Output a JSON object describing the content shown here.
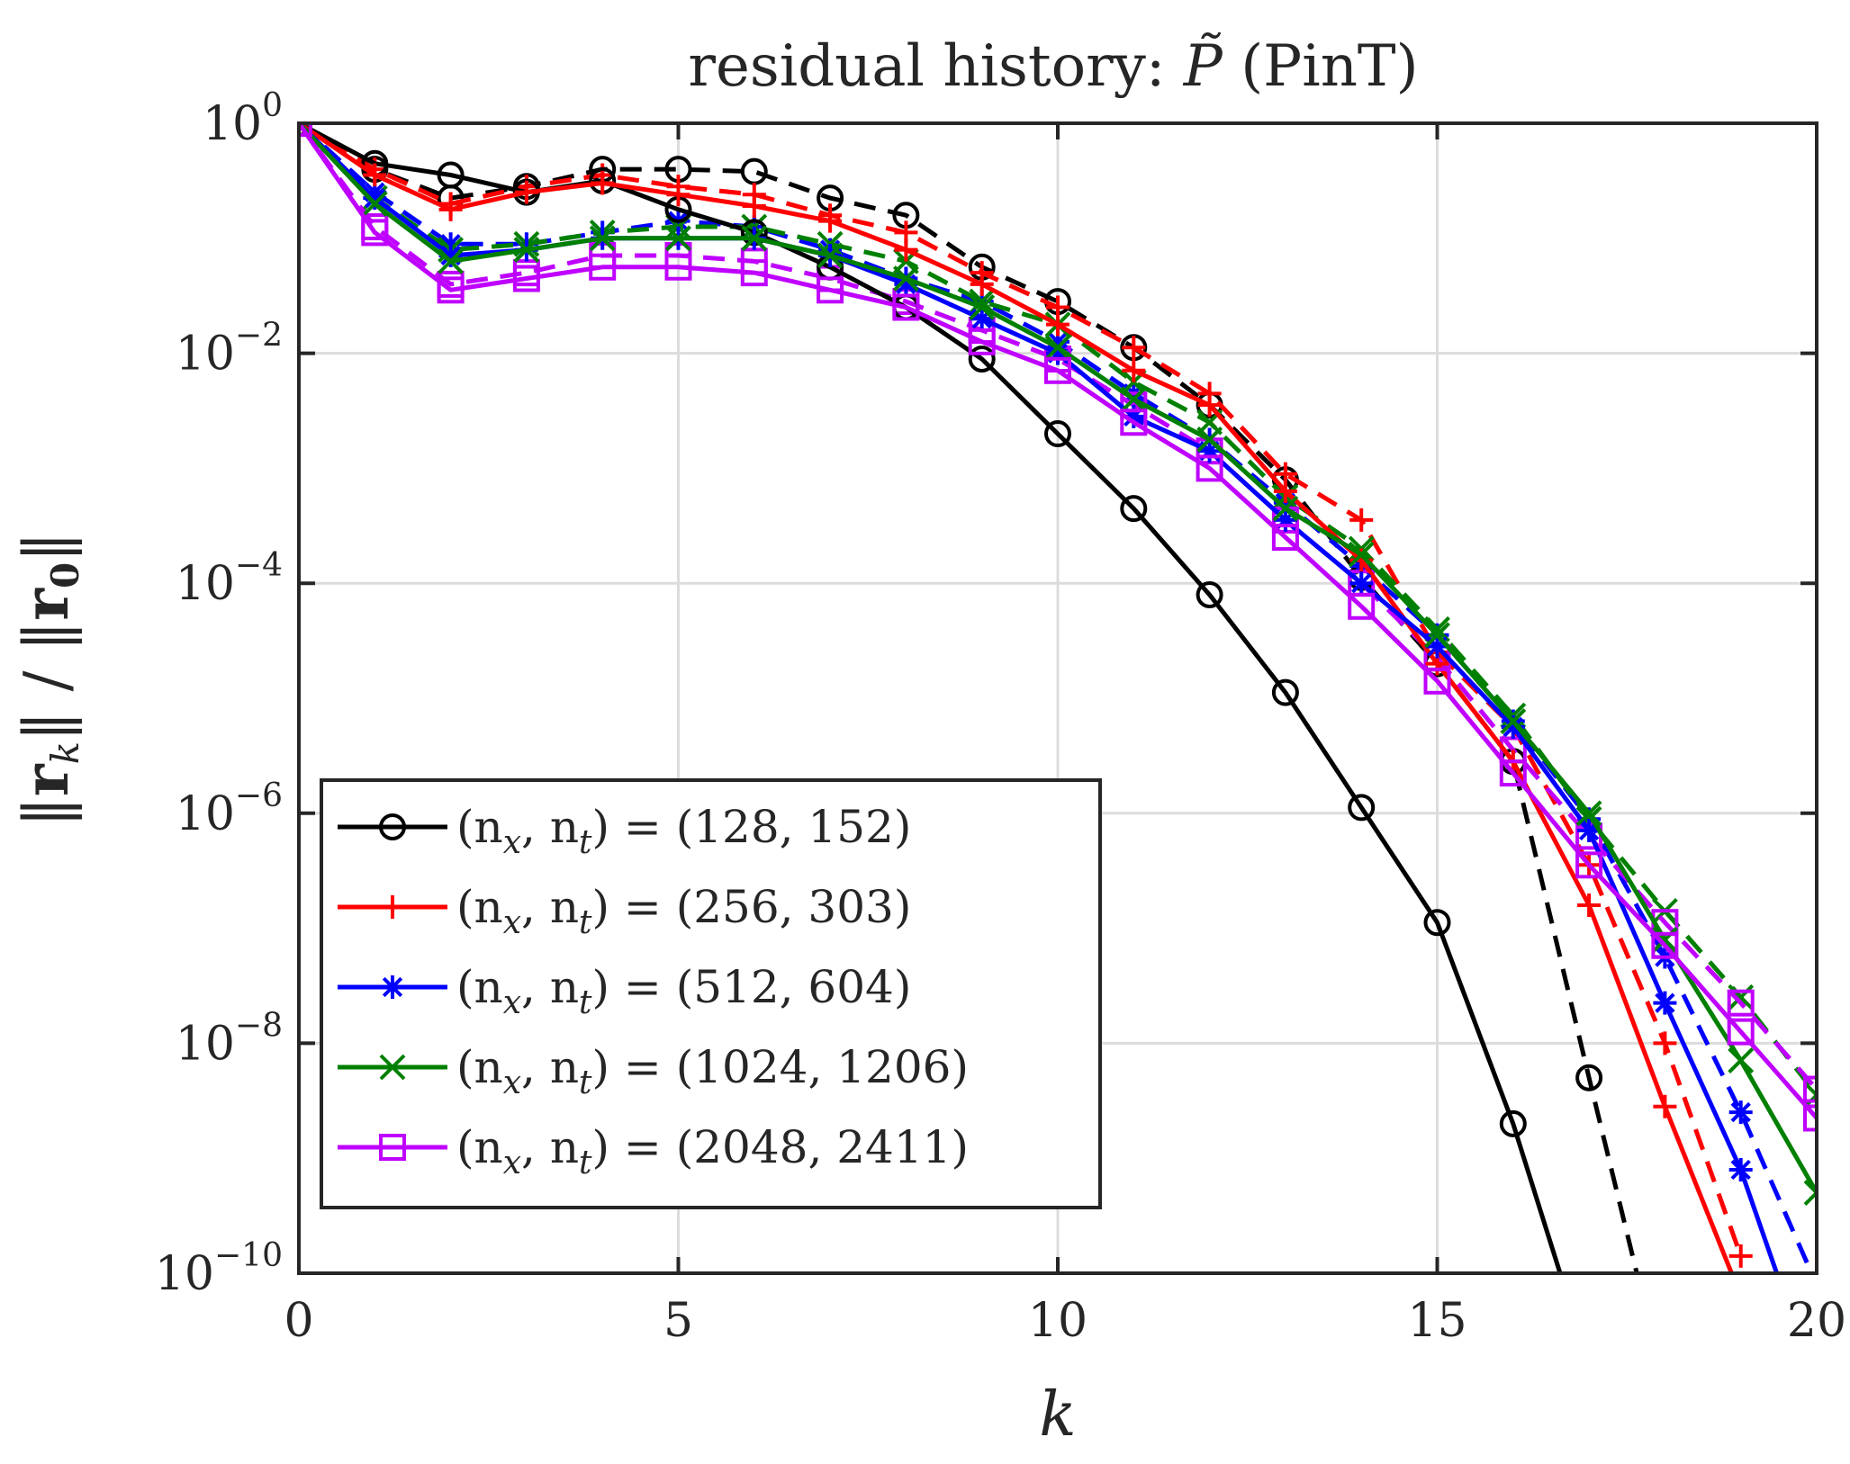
{
  "chart_data": {
    "type": "line",
    "title": "residual history: P̃ (PinT)",
    "title_parts": {
      "prefix": "residual history: ",
      "symbol": "P̃",
      "suffix": " (PinT)"
    },
    "xlabel": "k",
    "ylabel": "||r_k|| / ||r_0||",
    "ylabel_parts": {
      "r": "r",
      "sub_k": "k",
      "sub_0": "0"
    },
    "yscale": "log",
    "xlim": [
      0,
      20
    ],
    "ylim_exponent": [
      -10,
      0
    ],
    "grid": true,
    "legend_position": "bottom-left",
    "x_ticks": [
      0,
      5,
      10,
      15,
      20
    ],
    "y_ticks": [
      {
        "base": "10",
        "exp": "0"
      },
      {
        "base": "10",
        "exp": "−2"
      },
      {
        "base": "10",
        "exp": "−4"
      },
      {
        "base": "10",
        "exp": "−6"
      },
      {
        "base": "10",
        "exp": "−8"
      },
      {
        "base": "10",
        "exp": "−10"
      }
    ],
    "line_styles": {
      "solid": "solid",
      "dashed": "dashed"
    },
    "series": [
      {
        "name": "(n_x, n_t) = (128, 152)",
        "legend": {
          "lhs": "(n",
          "x": "x",
          "mid": ", n",
          "t": "t",
          "rhs": ") = (128, 152)"
        },
        "color": "#000000",
        "marker": "circle",
        "solid_log10": [
          0,
          -0.35,
          -0.45,
          -0.6,
          -0.5,
          -0.75,
          -0.95,
          -1.25,
          -1.6,
          -2.05,
          -2.7,
          -3.35,
          -4.1,
          -4.95,
          -5.95,
          -6.95,
          -8.7,
          -10.8
        ],
        "dashed_log10": [
          0,
          -0.4,
          -0.65,
          -0.55,
          -0.4,
          -0.4,
          -0.42,
          -0.65,
          -0.8,
          -1.25,
          -1.55,
          -1.95,
          -2.45,
          -3.1,
          -3.95,
          -4.7,
          -5.55,
          -8.3,
          -11.0
        ]
      },
      {
        "name": "(n_x, n_t) = (256, 303)",
        "legend": {
          "lhs": "(n",
          "x": "x",
          "mid": ", n",
          "t": "t",
          "rhs": ") = (256, 303)"
        },
        "color": "#ff0000",
        "marker": "plus",
        "solid_log10": [
          0,
          -0.45,
          -0.75,
          -0.6,
          -0.52,
          -0.62,
          -0.72,
          -0.85,
          -1.1,
          -1.4,
          -1.75,
          -2.15,
          -2.45,
          -3.2,
          -3.8,
          -4.7,
          -5.55,
          -6.8,
          -8.55,
          -10.2
        ],
        "dashed_log10": [
          0,
          -0.4,
          -0.7,
          -0.55,
          -0.45,
          -0.55,
          -0.62,
          -0.8,
          -0.95,
          -1.3,
          -1.6,
          -1.95,
          -2.35,
          -3.05,
          -3.45,
          -4.6,
          -5.25,
          -6.45,
          -8.0,
          -9.85
        ]
      },
      {
        "name": "(n_x, n_t) = (512, 604)",
        "legend": {
          "lhs": "(n",
          "x": "x",
          "mid": ", n",
          "t": "t",
          "rhs": ") = (512, 604)"
        },
        "color": "#0000ff",
        "marker": "star",
        "solid_log10": [
          0,
          -0.65,
          -1.15,
          -1.1,
          -1.0,
          -1.0,
          -1.0,
          -1.15,
          -1.4,
          -1.7,
          -2.0,
          -2.55,
          -2.85,
          -3.45,
          -4.0,
          -4.55,
          -5.25,
          -6.15,
          -7.65,
          -9.1,
          -11.0
        ],
        "dashed_log10": [
          0,
          -0.6,
          -1.05,
          -1.05,
          -0.95,
          -0.85,
          -0.9,
          -1.1,
          -1.35,
          -1.55,
          -1.9,
          -2.35,
          -2.75,
          -3.3,
          -3.85,
          -4.45,
          -5.2,
          -6.05,
          -7.25,
          -8.6,
          -10.1
        ]
      },
      {
        "name": "(n_x, n_t) = (1024, 1206)",
        "legend": {
          "lhs": "(n",
          "x": "x",
          "mid": ", n",
          "t": "t",
          "rhs": ") = (1024, 1206)"
        },
        "color": "#008000",
        "marker": "cross",
        "solid_log10": [
          0,
          -0.7,
          -1.2,
          -1.1,
          -1.0,
          -1.0,
          -1.0,
          -1.15,
          -1.35,
          -1.6,
          -1.95,
          -2.4,
          -2.75,
          -3.35,
          -3.75,
          -4.45,
          -5.2,
          -6.0,
          -7.1,
          -8.15,
          -9.3
        ],
        "dashed_log10": [
          0,
          -0.65,
          -1.1,
          -1.05,
          -0.95,
          -0.9,
          -0.9,
          -1.05,
          -1.2,
          -1.55,
          -1.75,
          -2.25,
          -2.6,
          -3.25,
          -3.7,
          -4.4,
          -5.15,
          -6.05,
          -6.85,
          -7.6,
          -8.45
        ]
      },
      {
        "name": "(n_x, n_t) = (2048, 2411)",
        "legend": {
          "lhs": "(n",
          "x": "x",
          "mid": ", n",
          "t": "t",
          "rhs": ") = (2048, 2411)"
        },
        "color": "#bf00ff",
        "marker": "square",
        "solid_log10": [
          0,
          -0.95,
          -1.45,
          -1.35,
          -1.25,
          -1.25,
          -1.3,
          -1.45,
          -1.6,
          -1.9,
          -2.15,
          -2.6,
          -3.0,
          -3.6,
          -4.2,
          -4.85,
          -5.65,
          -6.45,
          -7.15,
          -7.9,
          -8.65
        ],
        "dashed_log10": [
          0,
          -0.9,
          -1.4,
          -1.3,
          -1.15,
          -1.15,
          -1.2,
          -1.35,
          -1.55,
          -1.8,
          -2.05,
          -2.45,
          -2.85,
          -3.45,
          -4.0,
          -4.65,
          -5.45,
          -6.2,
          -6.95,
          -7.65,
          -8.4
        ]
      }
    ]
  }
}
